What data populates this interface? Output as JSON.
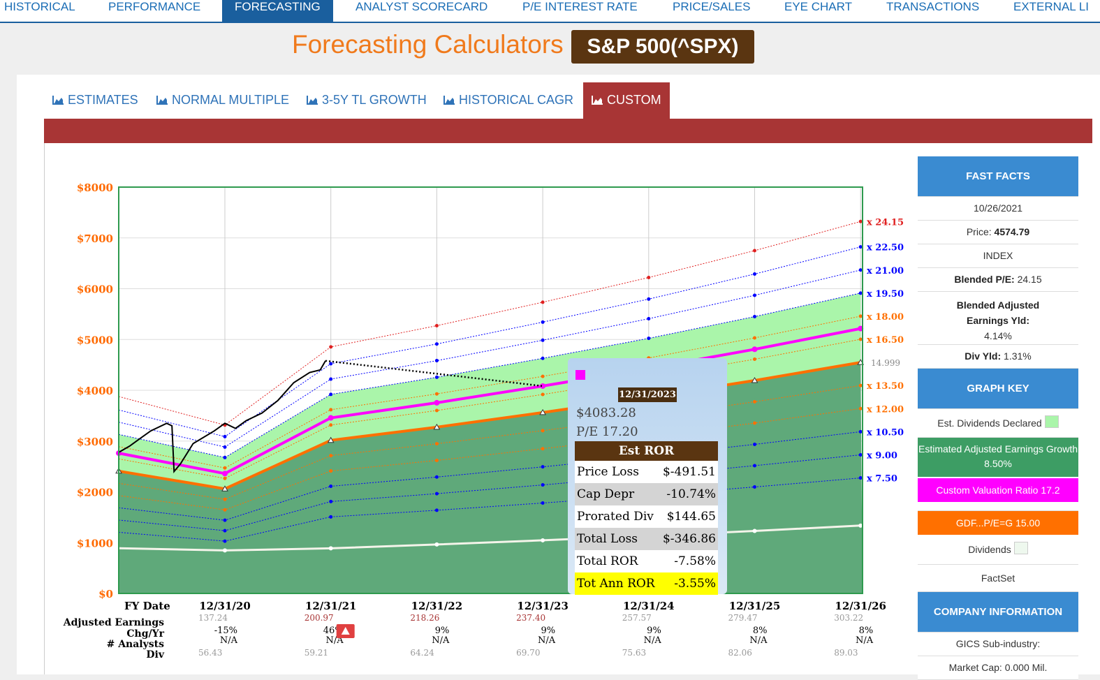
{
  "nav": [
    "HISTORICAL",
    "PERFORMANCE",
    "FORECASTING",
    "ANALYST SCORECARD",
    "P/E INTEREST RATE",
    "PRICE/SALES",
    "EYE CHART",
    "TRANSACTIONS",
    "EXTERNAL LI"
  ],
  "title": "Forecasting Calculators",
  "ticker": "S&P 500(^SPX)",
  "subtabs": [
    "ESTIMATES",
    "NORMAL MULTIPLE",
    "3-5Y TL GROWTH",
    "HISTORICAL CAGR",
    "CUSTOM"
  ],
  "chart_data": {
    "type": "line",
    "y_ticks": [
      "$8000",
      "$7000",
      "$6000",
      "$5000",
      "$4000",
      "$3000",
      "$2000",
      "$1000",
      "$0"
    ],
    "ylim": [
      0,
      8000
    ],
    "x": [
      "12/31/20",
      "12/31/21",
      "12/31/22",
      "12/31/23",
      "12/31/24",
      "12/31/25",
      "12/31/26"
    ],
    "fy_label": "FY Date",
    "eps": [
      "137.24",
      "200.97",
      "218.26",
      "237.40",
      "257.57",
      "279.47",
      "303.22"
    ],
    "chg_yr": [
      "-15%",
      "46%",
      "9%",
      "9%",
      "9%",
      "8%",
      "8%"
    ],
    "analysts": [
      "N/A",
      "N/A",
      "N/A",
      "N/A",
      "N/A",
      "N/A",
      "N/A"
    ],
    "div": [
      "56.43",
      "59.21",
      "64.24",
      "69.70",
      "75.63",
      "82.06",
      "89.03"
    ],
    "row_labels": [
      "Adjusted Earnings",
      "Chg/Yr",
      "# Analysts",
      "Div"
    ],
    "multiples": [
      "x 24.15",
      "x 22.50",
      "x 21.00",
      "x 19.50",
      "x 18.00",
      "x 16.50",
      "x 15.00",
      "x 13.50",
      "x 12.00",
      "x 10.50",
      "x 9.00",
      "x 7.50"
    ],
    "multiple_values": [
      24.15,
      22.5,
      21,
      19.5,
      18,
      16.5,
      15,
      13.5,
      12,
      10.5,
      9,
      7.5
    ],
    "gdf_label": "14.999",
    "custom_pe": 17.2,
    "price_line": [
      [
        -1.0,
        2780
      ],
      [
        -0.9,
        2900
      ],
      [
        -0.8,
        3050
      ],
      [
        -0.7,
        3200
      ],
      [
        -0.55,
        3350
      ],
      [
        -0.5,
        3300
      ],
      [
        -0.48,
        2400
      ],
      [
        -0.42,
        2550
      ],
      [
        -0.3,
        2950
      ],
      [
        -0.1,
        3200
      ],
      [
        0.0,
        3350
      ],
      [
        0.1,
        3250
      ],
      [
        0.2,
        3400
      ],
      [
        0.35,
        3550
      ],
      [
        0.5,
        3800
      ],
      [
        0.65,
        4150
      ],
      [
        0.8,
        4350
      ],
      [
        0.9,
        4400
      ],
      [
        0.95,
        4580
      ]
    ],
    "forecast_end": 4083.28
  },
  "tooltip": {
    "date": "12/31/2023",
    "price": "$4083.28",
    "pe": "P/E 17.20",
    "header": "Est ROR",
    "rows": [
      {
        "label": "Price Loss",
        "value": "$-491.51"
      },
      {
        "label": "Cap Depr",
        "value": "-10.74%"
      },
      {
        "label": "Prorated Div",
        "value": "$144.65"
      },
      {
        "label": "Total Loss",
        "value": "$-346.86"
      },
      {
        "label": "Total ROR",
        "value": "-7.58%"
      },
      {
        "label": "Tot Ann ROR",
        "value": "-3.55%"
      }
    ]
  },
  "sidebar": {
    "fast_facts": "FAST FACTS",
    "date": "10/26/2021",
    "price_label": "Price:",
    "price": "4574.79",
    "type": "INDEX",
    "blended_pe_label": "Blended P/E:",
    "blended_pe": "24.15",
    "earn_yld_label": "Blended Adjusted Earnings Yld:",
    "earn_yld": "4.14%",
    "div_yld_label": "Div Yld:",
    "div_yld": "1.31%",
    "graph_key": "GRAPH KEY",
    "est_div": "Est. Dividends Declared",
    "est_earn": "Estimated Adjusted Earnings Growth 8.50%",
    "custom_val": "Custom Valuation Ratio 17.2",
    "gdf": "GDF...P/E=G 15.00",
    "dividends": "Dividends",
    "factset": "FactSet",
    "company_info": "COMPANY INFORMATION",
    "gics": "GICS Sub-industry:",
    "mktcap": "Market Cap: 0.000 Mil."
  },
  "colors": {
    "accent": "#1a5f9e",
    "tab_red": "#a83535",
    "magenta": "#ff00ff",
    "orange": "#ff7000",
    "green_dark": "#3d9d64",
    "green_light": "#aaf5aa"
  }
}
